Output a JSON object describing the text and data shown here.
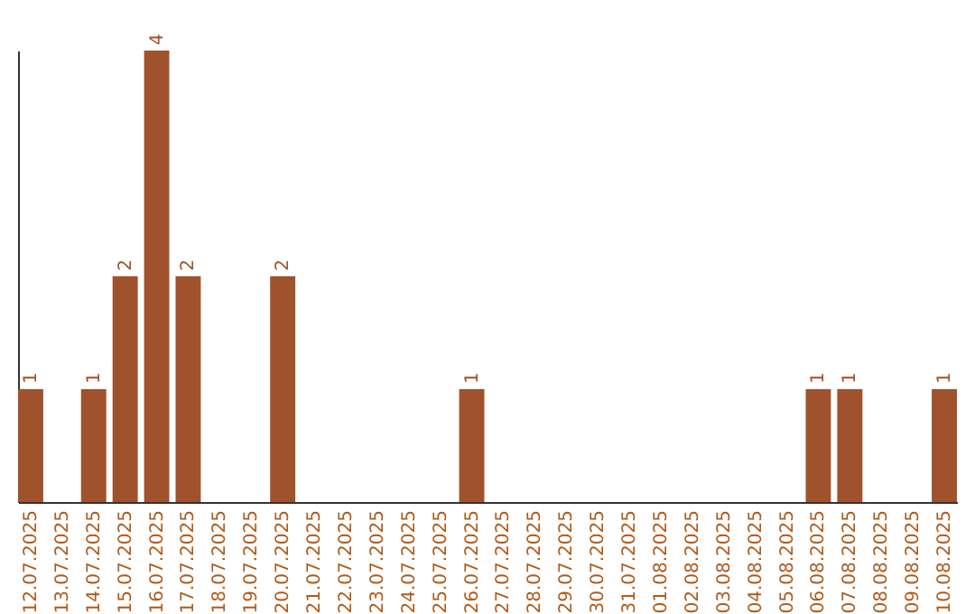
{
  "chart_data": {
    "type": "bar",
    "categories": [
      "12.07.2025",
      "13.07.2025",
      "14.07.2025",
      "15.07.2025",
      "16.07.2025",
      "17.07.2025",
      "18.07.2025",
      "19.07.2025",
      "20.07.2025",
      "21.07.2025",
      "22.07.2025",
      "23.07.2025",
      "24.07.2025",
      "25.07.2025",
      "26.07.2025",
      "27.07.2025",
      "28.07.2025",
      "29.07.2025",
      "30.07.2025",
      "31.07.2025",
      "01.08.2025",
      "02.08.2025",
      "03.08.2025",
      "04.08.2025",
      "05.08.2025",
      "06.08.2025",
      "07.08.2025",
      "08.08.2025",
      "09.08.2025",
      "10.08.2025"
    ],
    "values": [
      1,
      0,
      1,
      2,
      4,
      2,
      0,
      0,
      2,
      0,
      0,
      0,
      0,
      0,
      1,
      0,
      0,
      0,
      0,
      0,
      0,
      0,
      0,
      0,
      0,
      1,
      1,
      0,
      0,
      1
    ],
    "value_labels": [
      "1",
      null,
      "1",
      "2",
      "4",
      "2",
      null,
      null,
      "2",
      null,
      null,
      null,
      null,
      null,
      "1",
      null,
      null,
      null,
      null,
      null,
      null,
      null,
      null,
      null,
      null,
      "1",
      "1",
      null,
      null,
      "1"
    ],
    "color": "#a0522d",
    "grid": false,
    "legend": false
  }
}
